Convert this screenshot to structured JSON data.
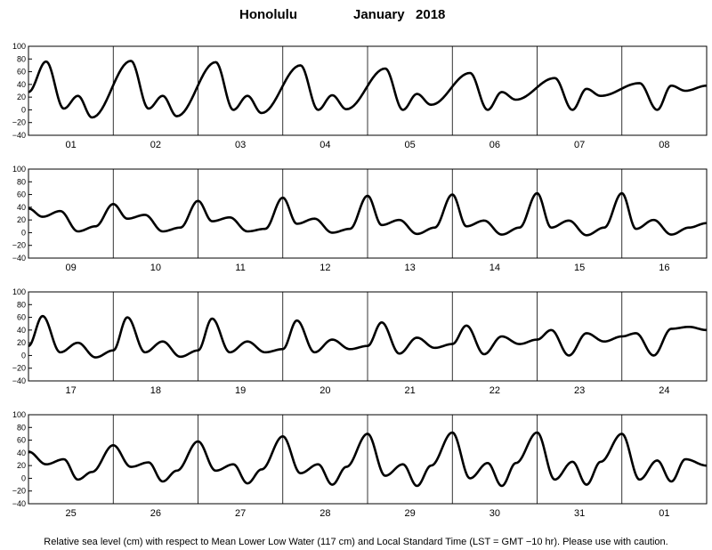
{
  "title": {
    "station": "Honolulu",
    "month_year": "January   2018"
  },
  "footer": "Relative sea level (cm) with respect to Mean Lower Low Water (117 cm) and Local Standard Time (LST = GMT −10 hr). Please use with caution.",
  "chart_data": {
    "type": "line",
    "ylim": [
      -40,
      100
    ],
    "yticks": [
      "100",
      "80",
      "60",
      "40",
      "20",
      "0",
      "−20",
      "−40"
    ],
    "grid": "vertical lines at day boundaries",
    "panels": [
      {
        "day_labels": [
          "01",
          "02",
          "03",
          "04",
          "05",
          "06",
          "07",
          "08"
        ],
        "extrema_hours": [
          0,
          5,
          10,
          14,
          18,
          29,
          34,
          38,
          42,
          53,
          58,
          62,
          66,
          77,
          82,
          86,
          90,
          101,
          106,
          110,
          114,
          125,
          130,
          134,
          138,
          149,
          154,
          158,
          162,
          173,
          178,
          182,
          186,
          192
        ],
        "extrema_values": [
          28,
          76,
          2,
          22,
          -12,
          77,
          2,
          22,
          -10,
          75,
          0,
          22,
          -5,
          70,
          0,
          23,
          1,
          65,
          0,
          25,
          8,
          58,
          0,
          28,
          16,
          50,
          0,
          33,
          22,
          42,
          0,
          38,
          30,
          38
        ]
      },
      {
        "day_labels": [
          "09",
          "10",
          "11",
          "12",
          "13",
          "14",
          "15",
          "16"
        ],
        "extrema_hours": [
          0,
          4,
          9,
          14,
          19,
          24,
          28,
          33,
          38,
          43,
          48,
          52,
          57,
          62,
          67,
          72,
          76,
          81,
          86,
          91,
          96,
          100,
          105,
          110,
          115,
          120,
          124,
          129,
          134,
          139,
          144,
          148,
          153,
          158,
          163,
          168,
          172,
          177,
          182,
          187,
          192
        ],
        "extrema_values": [
          38,
          25,
          34,
          2,
          10,
          45,
          22,
          28,
          2,
          8,
          50,
          18,
          24,
          2,
          6,
          55,
          14,
          22,
          0,
          6,
          58,
          12,
          20,
          -2,
          8,
          60,
          10,
          19,
          -3,
          8,
          62,
          8,
          19,
          -4,
          8,
          62,
          6,
          20,
          -3,
          8,
          15
        ]
      },
      {
        "day_labels": [
          "17",
          "18",
          "19",
          "20",
          "21",
          "22",
          "23",
          "24"
        ],
        "extrema_hours": [
          0,
          4,
          9,
          14,
          19,
          24,
          28,
          33,
          38,
          43,
          48,
          52,
          57,
          62,
          67,
          72,
          76,
          81,
          86,
          91,
          96,
          100,
          105,
          110,
          115,
          120,
          124,
          129,
          134,
          139,
          144,
          148,
          153,
          158,
          163,
          168,
          172,
          177,
          182,
          187,
          192
        ],
        "extrema_values": [
          15,
          62,
          5,
          20,
          -3,
          8,
          60,
          5,
          22,
          -2,
          8,
          58,
          5,
          22,
          5,
          10,
          55,
          5,
          25,
          10,
          15,
          52,
          3,
          28,
          12,
          18,
          47,
          2,
          30,
          18,
          25,
          40,
          0,
          35,
          22,
          30,
          35,
          0,
          42,
          45,
          40
        ]
      },
      {
        "day_labels": [
          "25",
          "26",
          "27",
          "28",
          "29",
          "30",
          "31",
          "01"
        ],
        "extrema_hours": [
          0,
          5,
          10,
          14,
          18,
          24,
          29,
          34,
          38,
          42,
          48,
          53,
          58,
          62,
          66,
          72,
          77,
          82,
          86,
          90,
          96,
          101,
          106,
          110,
          114,
          120,
          125,
          130,
          134,
          138,
          144,
          149,
          154,
          158,
          162,
          168,
          173,
          178,
          182,
          186,
          192
        ],
        "extrema_values": [
          42,
          22,
          30,
          -2,
          10,
          52,
          18,
          25,
          -5,
          12,
          58,
          12,
          22,
          -8,
          14,
          66,
          8,
          22,
          -10,
          18,
          70,
          4,
          22,
          -12,
          20,
          72,
          0,
          24,
          -12,
          24,
          72,
          -2,
          26,
          -10,
          26,
          70,
          -2,
          28,
          -5,
          30,
          20
        ]
      }
    ]
  }
}
